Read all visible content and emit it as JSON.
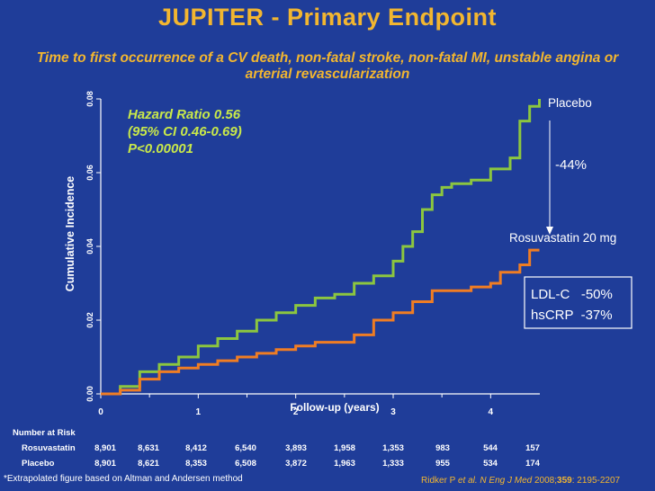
{
  "title": "JUPITER - Primary Endpoint",
  "subtitle": "Time to first occurrence of a CV death, non-fatal stroke, non-fatal MI, unstable angina or arterial revascularization",
  "chart_data": {
    "type": "line",
    "xlabel": "Follow-up (years)",
    "ylabel": "Cumulative Incidence",
    "xlim": [
      0,
      4.5
    ],
    "ylim": [
      0,
      0.08
    ],
    "x_ticks": [
      "0",
      "1",
      "2",
      "3",
      "4"
    ],
    "y_ticks": [
      "0.00",
      "0.02",
      "0.04",
      "0.06",
      "0.08"
    ],
    "series": [
      {
        "name": "Placebo",
        "color": "#8cc63f",
        "x": [
          0,
          0.2,
          0.4,
          0.6,
          0.8,
          1.0,
          1.2,
          1.4,
          1.6,
          1.8,
          2.0,
          2.2,
          2.4,
          2.6,
          2.8,
          3.0,
          3.1,
          3.2,
          3.3,
          3.4,
          3.5,
          3.6,
          3.8,
          4.0,
          4.2,
          4.3,
          4.4,
          4.5
        ],
        "y": [
          0,
          0.002,
          0.006,
          0.008,
          0.01,
          0.013,
          0.015,
          0.017,
          0.02,
          0.022,
          0.024,
          0.026,
          0.027,
          0.03,
          0.032,
          0.036,
          0.04,
          0.044,
          0.05,
          0.054,
          0.056,
          0.057,
          0.058,
          0.061,
          0.064,
          0.074,
          0.078,
          0.08
        ]
      },
      {
        "name": "Rosuvastatin 20 mg",
        "color": "#f07d23",
        "x": [
          0,
          0.2,
          0.4,
          0.6,
          0.8,
          1.0,
          1.2,
          1.4,
          1.6,
          1.8,
          2.0,
          2.2,
          2.4,
          2.6,
          2.8,
          3.0,
          3.2,
          3.4,
          3.6,
          3.8,
          4.0,
          4.1,
          4.2,
          4.3,
          4.4,
          4.5
        ],
        "y": [
          0,
          0.001,
          0.004,
          0.006,
          0.007,
          0.008,
          0.009,
          0.01,
          0.011,
          0.012,
          0.013,
          0.014,
          0.014,
          0.016,
          0.02,
          0.022,
          0.025,
          0.028,
          0.028,
          0.029,
          0.03,
          0.033,
          0.033,
          0.035,
          0.039,
          0.039
        ]
      }
    ],
    "annotations": {
      "hazard_ratio": "Hazard Ratio 0.56",
      "ci": "(95% CI 0.46-0.69)",
      "p_value": "P<0.00001",
      "reduction": "-44%",
      "placebo_label": "Placebo",
      "rosuva_label": "Rosuvastatin 20 mg",
      "ldl": "LDL-C   -50%",
      "hscrp": "hsCRP  -37%"
    },
    "risk_table": {
      "header": "Number at Risk",
      "rows": [
        {
          "label": "Rosuvastatin",
          "values": [
            "8,901",
            "8,631",
            "8,412",
            "6,540",
            "3,893",
            "1,958",
            "1,353",
            "983",
            "544",
            "157"
          ]
        },
        {
          "label": "Placebo",
          "values": [
            "8,901",
            "8,621",
            "8,353",
            "6,508",
            "3,872",
            "1,963",
            "1,333",
            "955",
            "534",
            "174"
          ]
        }
      ]
    }
  },
  "footnote": "*Extrapolated figure based on Altman and Andersen method",
  "citation": {
    "prefix": "Ridker P ",
    "etal": "et al. N Eng J Med",
    "year": " 2008;",
    "volume": "359",
    "pages": ": 2195-2207"
  },
  "colors": {
    "background": "#1f3d99",
    "title": "#f2b630",
    "hr_text": "#c8e84a",
    "placebo": "#8cc63f",
    "rosuva": "#f07d23"
  }
}
